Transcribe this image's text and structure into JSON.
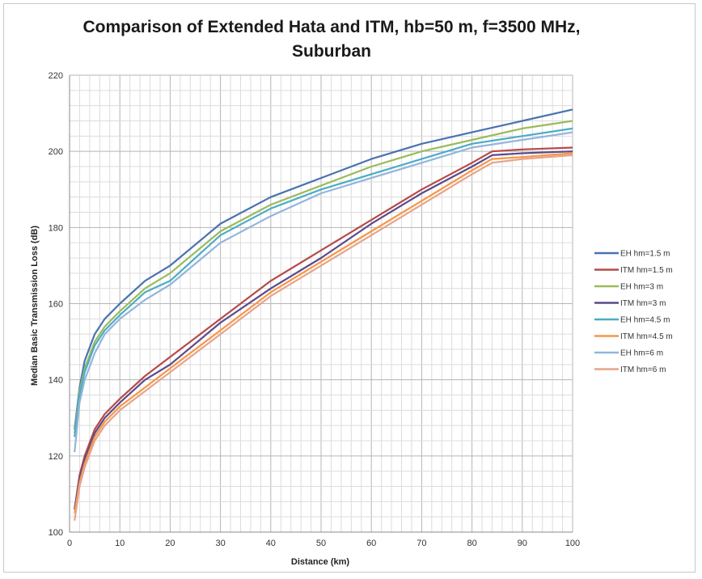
{
  "chart_data": {
    "type": "line",
    "title_lines": [
      "Comparison of Extended Hata and ITM, hb=50 m, f=3500 MHz,",
      "Suburban"
    ],
    "xlabel": "Distance (km)",
    "ylabel": "Median Basic Transmission Loss (dB)",
    "xlim": [
      0,
      100
    ],
    "ylim": [
      100,
      220
    ],
    "xticks": [
      0,
      10,
      20,
      30,
      40,
      50,
      60,
      70,
      80,
      90,
      100
    ],
    "yticks": [
      100,
      120,
      140,
      160,
      180,
      200,
      220
    ],
    "grid": true,
    "legend_position": "right",
    "series": [
      {
        "name": "EH hm=1.5 m",
        "color": "#4a72b0",
        "x": [
          1,
          2,
          3,
          5,
          7,
          10,
          15,
          20,
          30,
          40,
          50,
          60,
          70,
          80,
          90,
          100
        ],
        "y": [
          127,
          138,
          145,
          152,
          156,
          160,
          166,
          170,
          181,
          188,
          193,
          198,
          202,
          205,
          208,
          211
        ]
      },
      {
        "name": "ITM hm=1.5 m",
        "color": "#b54b48",
        "x": [
          1,
          2,
          3,
          5,
          7,
          10,
          15,
          20,
          30,
          40,
          50,
          60,
          70,
          80,
          84,
          90,
          100
        ],
        "y": [
          106,
          115,
          120,
          127,
          131,
          135,
          141,
          146,
          156,
          166,
          174,
          182,
          190,
          197,
          200,
          200.5,
          201
        ]
      },
      {
        "name": "EH hm=3 m",
        "color": "#9bbb59",
        "x": [
          1,
          2,
          3,
          5,
          7,
          10,
          15,
          20,
          30,
          40,
          50,
          60,
          70,
          80,
          90,
          100
        ],
        "y": [
          126,
          137,
          143,
          150,
          154,
          158,
          164,
          168,
          179,
          186,
          191,
          196,
          200,
          203,
          206,
          208
        ]
      },
      {
        "name": "ITM hm=3 m",
        "color": "#5b4a8c",
        "x": [
          1,
          2,
          3,
          5,
          7,
          10,
          15,
          20,
          30,
          40,
          50,
          60,
          70,
          80,
          84,
          90,
          100
        ],
        "y": [
          106,
          114,
          119,
          126,
          130,
          134,
          140,
          144,
          155,
          164,
          172,
          181,
          189,
          196,
          199,
          199.5,
          200
        ]
      },
      {
        "name": "EH hm=4.5 m",
        "color": "#4bacc6",
        "x": [
          1,
          2,
          3,
          5,
          7,
          10,
          15,
          20,
          30,
          40,
          50,
          60,
          70,
          80,
          90,
          100
        ],
        "y": [
          125,
          136,
          142,
          149,
          153,
          157,
          163,
          166,
          178,
          185,
          190,
          194,
          198,
          202,
          204,
          206
        ]
      },
      {
        "name": "ITM hm=4.5 m",
        "color": "#f79646",
        "x": [
          1,
          2,
          3,
          5,
          7,
          10,
          15,
          20,
          30,
          40,
          50,
          60,
          70,
          80,
          84,
          90,
          100
        ],
        "y": [
          105,
          113,
          118,
          125,
          129,
          133,
          138,
          143,
          153,
          163,
          171,
          179,
          187,
          195,
          198,
          198.5,
          199.5
        ]
      },
      {
        "name": "EH hm=6 m",
        "color": "#93b5dc",
        "x": [
          1,
          2,
          3,
          5,
          7,
          10,
          15,
          20,
          30,
          40,
          50,
          60,
          70,
          80,
          90,
          100
        ],
        "y": [
          121,
          134,
          140,
          147,
          152,
          156,
          161,
          165,
          176,
          183,
          189,
          193,
          197,
          201,
          203,
          205
        ]
      },
      {
        "name": "ITM hm=6 m",
        "color": "#e6a48a",
        "x": [
          1,
          2,
          3,
          5,
          7,
          10,
          15,
          20,
          30,
          40,
          50,
          60,
          70,
          80,
          84,
          90,
          100
        ],
        "y": [
          103,
          112,
          117,
          124,
          128,
          132,
          137,
          142,
          152,
          162,
          170,
          178,
          186,
          194,
          197,
          198,
          199
        ]
      }
    ]
  }
}
